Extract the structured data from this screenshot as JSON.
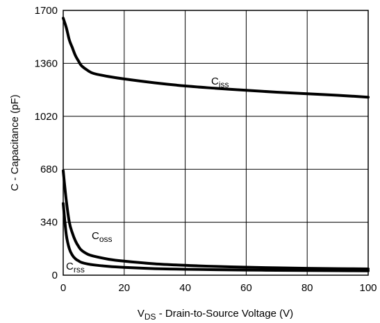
{
  "chart_data": {
    "type": "line",
    "title": "",
    "xlabel_main": "V",
    "xlabel_sub": "DS",
    "xlabel_rest": " - Drain-to-Source Voltage (V)",
    "ylabel": "C - Capacitance (pF)",
    "xlim": [
      0,
      100
    ],
    "ylim": [
      0,
      1700
    ],
    "grid": true,
    "x_ticks": [
      "0",
      "20",
      "40",
      "60",
      "80",
      "100"
    ],
    "y_ticks": [
      "0",
      "340",
      "680",
      "1020",
      "1360",
      "1700"
    ],
    "series": [
      {
        "name_main": "C",
        "name_sub": "iss",
        "x": [
          0,
          1,
          2,
          3,
          4,
          5,
          6,
          8,
          10,
          15,
          20,
          30,
          40,
          50,
          60,
          70,
          80,
          90,
          100
        ],
        "values": [
          1650,
          1590,
          1510,
          1460,
          1410,
          1375,
          1345,
          1315,
          1295,
          1275,
          1260,
          1235,
          1215,
          1200,
          1187,
          1175,
          1165,
          1155,
          1143
        ]
      },
      {
        "name_main": "C",
        "name_sub": "oss",
        "x": [
          0,
          1,
          2,
          3,
          4,
          5,
          6,
          8,
          10,
          15,
          20,
          30,
          40,
          50,
          60,
          70,
          80,
          90,
          100
        ],
        "values": [
          670,
          480,
          340,
          270,
          220,
          185,
          160,
          135,
          122,
          102,
          90,
          73,
          63,
          56,
          51,
          47,
          44,
          42,
          40
        ]
      },
      {
        "name_main": "C",
        "name_sub": "rss",
        "x": [
          0,
          1,
          2,
          3,
          4,
          5,
          6,
          8,
          10,
          15,
          20,
          30,
          40,
          50,
          60,
          70,
          80,
          90,
          100
        ],
        "values": [
          460,
          260,
          170,
          128,
          105,
          92,
          82,
          72,
          66,
          56,
          50,
          42,
          38,
          35,
          33,
          31,
          30,
          29,
          28
        ]
      }
    ]
  }
}
